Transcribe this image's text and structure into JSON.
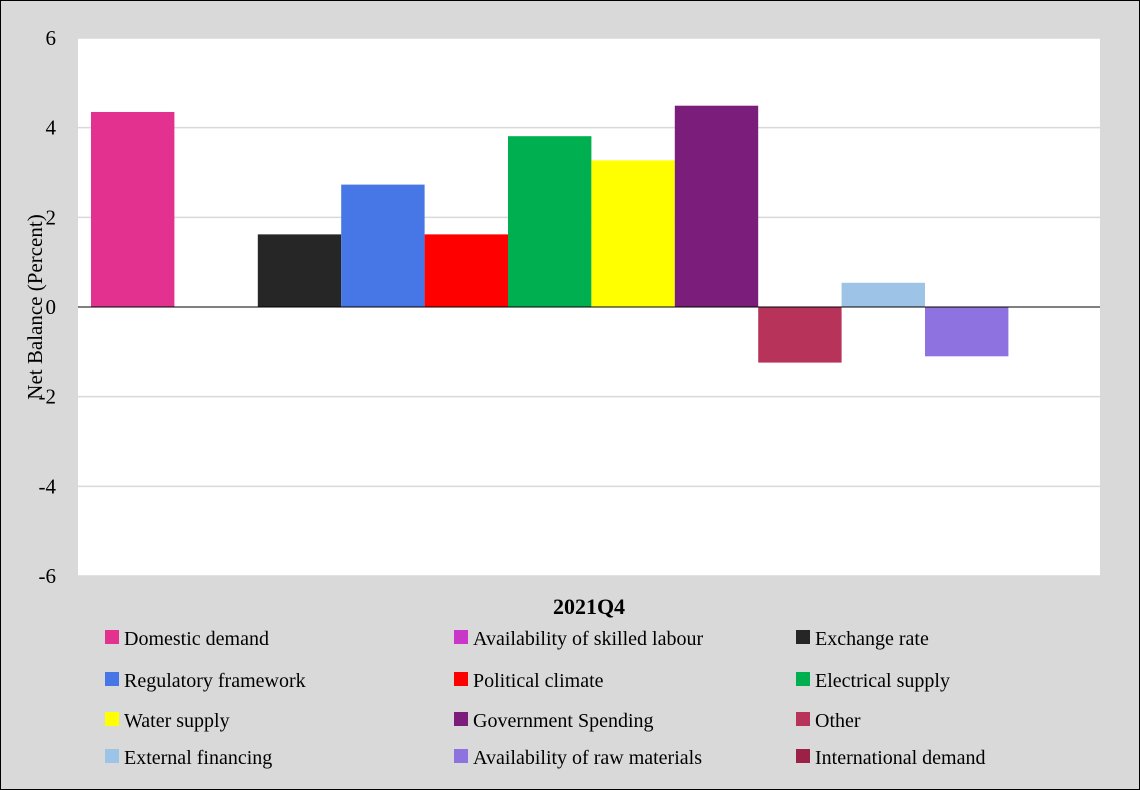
{
  "chart_data": {
    "type": "bar",
    "categories": [
      "2021Q4"
    ],
    "xlabel": "2021Q4",
    "ylabel": "Net Balance (Percent)",
    "ylim": [
      -6,
      6
    ],
    "yticks": [
      "6",
      "4",
      "2",
      "0",
      "-2",
      "-4",
      "-6"
    ],
    "grid": true,
    "legend_placement": "bottom",
    "series": [
      {
        "name": "Domestic demand",
        "values": [
          4.35
        ],
        "color": "#e3318f"
      },
      {
        "name": "Availability of skilled labour",
        "values": [
          0
        ],
        "color": "#c837c8"
      },
      {
        "name": "Exchange rate",
        "values": [
          1.62
        ],
        "color": "#262626"
      },
      {
        "name": "Regulatory framework",
        "values": [
          2.73
        ],
        "color": "#4776e6"
      },
      {
        "name": "Political climate",
        "values": [
          1.62
        ],
        "color": "#ff0000"
      },
      {
        "name": "Electrical supply",
        "values": [
          3.81
        ],
        "color": "#00b050"
      },
      {
        "name": "Water supply",
        "values": [
          3.27
        ],
        "color": "#ffff00"
      },
      {
        "name": "Government Spending",
        "values": [
          4.49
        ],
        "color": "#7b1e7b"
      },
      {
        "name": "Other",
        "values": [
          -1.24
        ],
        "color": "#b8335a"
      },
      {
        "name": "External financing",
        "values": [
          0.54
        ],
        "color": "#9dc3e6"
      },
      {
        "name": "Availability of raw materials",
        "values": [
          -1.1
        ],
        "color": "#8e73e0"
      },
      {
        "name": "International demand",
        "values": [
          0
        ],
        "color": "#9b2246"
      }
    ]
  }
}
